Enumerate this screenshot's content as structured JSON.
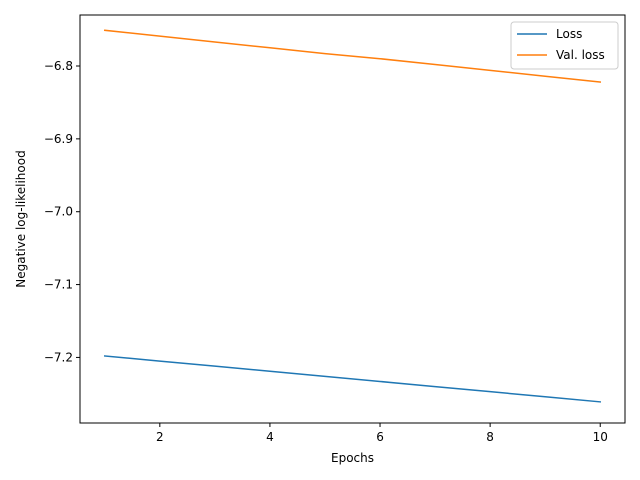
{
  "chart_data": {
    "type": "line",
    "xlabel": "Epochs",
    "ylabel": "Negative log-likelihood",
    "xlim": [
      0.55,
      10.45
    ],
    "ylim": [
      -7.29,
      -6.73
    ],
    "xticks": [
      2,
      4,
      6,
      8,
      10
    ],
    "xtick_labels": [
      "2",
      "4",
      "6",
      "8",
      "10"
    ],
    "yticks": [
      -7.2,
      -7.1,
      -7.0,
      -6.9,
      -6.8
    ],
    "ytick_labels": [
      "−7.2",
      "−7.1",
      "−7.0",
      "−6.9",
      "−6.8"
    ],
    "grid": false,
    "legend_position": "top-right",
    "x": [
      1,
      2,
      3,
      4,
      5,
      6,
      7,
      8,
      9,
      10
    ],
    "series": [
      {
        "name": "Loss",
        "color": "#1f77b4",
        "values": [
          -7.198,
          -7.205,
          -7.212,
          -7.219,
          -7.226,
          -7.233,
          -7.24,
          -7.247,
          -7.254,
          -7.261
        ]
      },
      {
        "name": "Val. loss",
        "color": "#ff7f0e",
        "values": [
          -6.751,
          -6.759,
          -6.767,
          -6.775,
          -6.783,
          -6.79,
          -6.798,
          -6.806,
          -6.814,
          -6.822
        ]
      }
    ]
  }
}
